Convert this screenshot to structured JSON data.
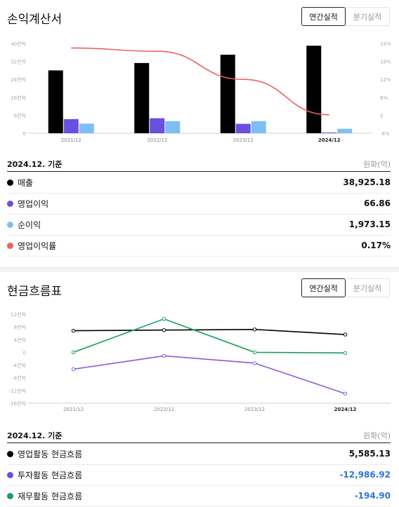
{
  "income": {
    "title": "손익계산서",
    "toggle": {
      "annual": "연간실적",
      "quarterly": "분기실적"
    },
    "basis": "2024.12. 기준",
    "unit": "원화(억)",
    "rows": [
      {
        "label": "매출",
        "value": "38,925.18",
        "color": "#000000"
      },
      {
        "label": "영업이익",
        "value": "66.86",
        "color": "#6a4fe0"
      },
      {
        "label": "순이익",
        "value": "1,973.15",
        "color": "#7fbef5"
      },
      {
        "label": "영업이익률",
        "value": "0.17%",
        "color": "#f06060"
      }
    ]
  },
  "cashflow": {
    "title": "현금흐름표",
    "toggle": {
      "annual": "연간실적",
      "quarterly": "분기실적"
    },
    "basis": "2024.12. 기준",
    "unit": "원화(억)",
    "rows": [
      {
        "label": "영업활동 현금흐름",
        "value": "5,585.13",
        "color": "#000000",
        "negative": false
      },
      {
        "label": "투자활동 현금흐름",
        "value": "-12,986.92",
        "color": "#6a4fe0",
        "negative": true
      },
      {
        "label": "재무활동 현금흐름",
        "value": "-194.90",
        "color": "#1a9e5c",
        "negative": true
      }
    ]
  },
  "chart_data": [
    {
      "type": "bar",
      "categories": [
        "2021/12",
        "2022/12",
        "2023/12",
        "2024/12"
      ],
      "ylim": [
        0,
        40000
      ],
      "y_ticks": [
        0,
        8000,
        16000,
        24000,
        32000,
        40000
      ],
      "y_tick_labels": [
        "0",
        "8천억",
        "16천억",
        "24천억",
        "32천억",
        "40천억"
      ],
      "y2lim": [
        -6,
        24
      ],
      "y2_ticks": [
        -6,
        0,
        6,
        12,
        18,
        24
      ],
      "y2_tick_labels": [
        "-6%",
        "0",
        "6%",
        "12%",
        "18%",
        "24%"
      ],
      "series": [
        {
          "name": "매출",
          "color": "#000000",
          "axis": "left",
          "values": [
            28000,
            31300,
            35000,
            39000
          ]
        },
        {
          "name": "영업이익",
          "color": "#6a4fe0",
          "axis": "left",
          "values": [
            6300,
            6700,
            4200,
            67
          ]
        },
        {
          "name": "순이익",
          "color": "#7fbef5",
          "axis": "left",
          "values": [
            4300,
            5400,
            5400,
            1973
          ]
        },
        {
          "name": "영업이익률",
          "color": "#f06060",
          "axis": "right",
          "kind": "line",
          "values": [
            22.5,
            21.4,
            12.0,
            0.17
          ]
        }
      ],
      "grid": false
    },
    {
      "type": "line",
      "categories": [
        "2021/12",
        "2022/12",
        "2023/12",
        "2024/12"
      ],
      "ylim": [
        -16000,
        12000
      ],
      "y_ticks": [
        12000,
        8000,
        4000,
        0,
        -4000,
        -8000,
        -12000,
        -16000
      ],
      "y_tick_labels": [
        "12천억",
        "8천억",
        "4천억",
        "0",
        "-4천억",
        "-8천억",
        "-12천억",
        "-16천억"
      ],
      "series": [
        {
          "name": "영업활동 현금흐름",
          "color": "#000000",
          "values": [
            6800,
            7000,
            7200,
            5585
          ]
        },
        {
          "name": "투자활동 현금흐름",
          "color": "#8a5ae0",
          "values": [
            -5300,
            -1100,
            -3400,
            -12987
          ]
        },
        {
          "name": "재무활동 현금흐름",
          "color": "#1a9e5c",
          "values": [
            0,
            10500,
            0,
            -195
          ]
        }
      ],
      "grid": false
    }
  ]
}
